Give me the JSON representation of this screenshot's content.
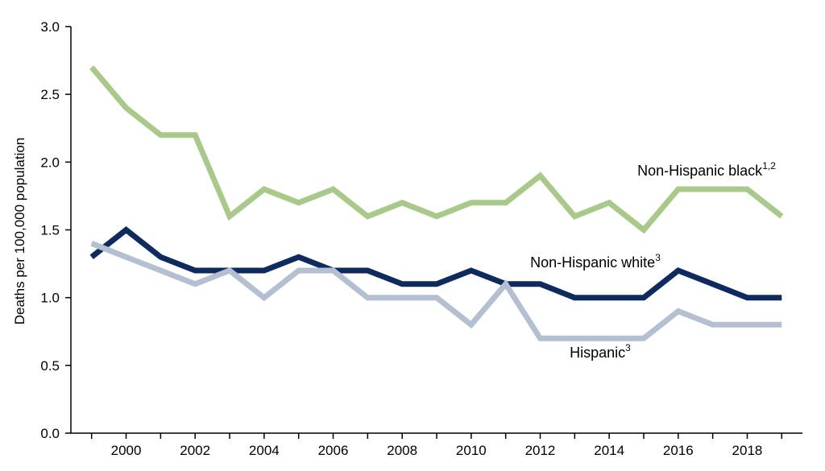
{
  "chart_data": {
    "type": "line",
    "title": "",
    "xlabel": "",
    "ylabel": "Deaths per 100,000 population",
    "x": [
      1999,
      2000,
      2001,
      2002,
      2003,
      2004,
      2005,
      2006,
      2007,
      2008,
      2009,
      2010,
      2011,
      2012,
      2013,
      2014,
      2015,
      2016,
      2017,
      2018,
      2019
    ],
    "xlim": [
      1998.4,
      2019.6
    ],
    "ylim": [
      0,
      3.0
    ],
    "y_ticks": [
      "0.0",
      "0.5",
      "1.0",
      "1.5",
      "2.0",
      "2.5",
      "3.0"
    ],
    "x_ticks": [
      "2000",
      "2002",
      "2004",
      "2006",
      "2008",
      "2010",
      "2012",
      "2014",
      "2016",
      "2018"
    ],
    "grid": false,
    "series": [
      {
        "name": "Non-Hispanic black",
        "superscript": "1,2",
        "color": "#a9c98a",
        "values": [
          2.7,
          2.4,
          2.2,
          2.2,
          1.6,
          1.8,
          1.7,
          1.8,
          1.6,
          1.7,
          1.6,
          1.7,
          1.7,
          1.9,
          1.6,
          1.7,
          1.5,
          1.8,
          1.8,
          1.8,
          1.6
        ]
      },
      {
        "name": "Non-Hispanic white",
        "superscript": "3",
        "color": "#0f2a5e",
        "values": [
          1.3,
          1.5,
          1.3,
          1.2,
          1.2,
          1.2,
          1.3,
          1.2,
          1.2,
          1.1,
          1.1,
          1.2,
          1.1,
          1.1,
          1.0,
          1.0,
          1.0,
          1.2,
          1.1,
          1.0,
          1.0
        ]
      },
      {
        "name": "Hispanic",
        "superscript": "3",
        "color": "#b4c0d1",
        "values": [
          1.4,
          1.3,
          1.2,
          1.1,
          1.2,
          1.0,
          1.2,
          1.2,
          1.0,
          1.0,
          1.0,
          0.8,
          1.1,
          0.7,
          0.7,
          0.7,
          0.7,
          0.9,
          0.8,
          0.8,
          0.8
        ]
      }
    ]
  }
}
